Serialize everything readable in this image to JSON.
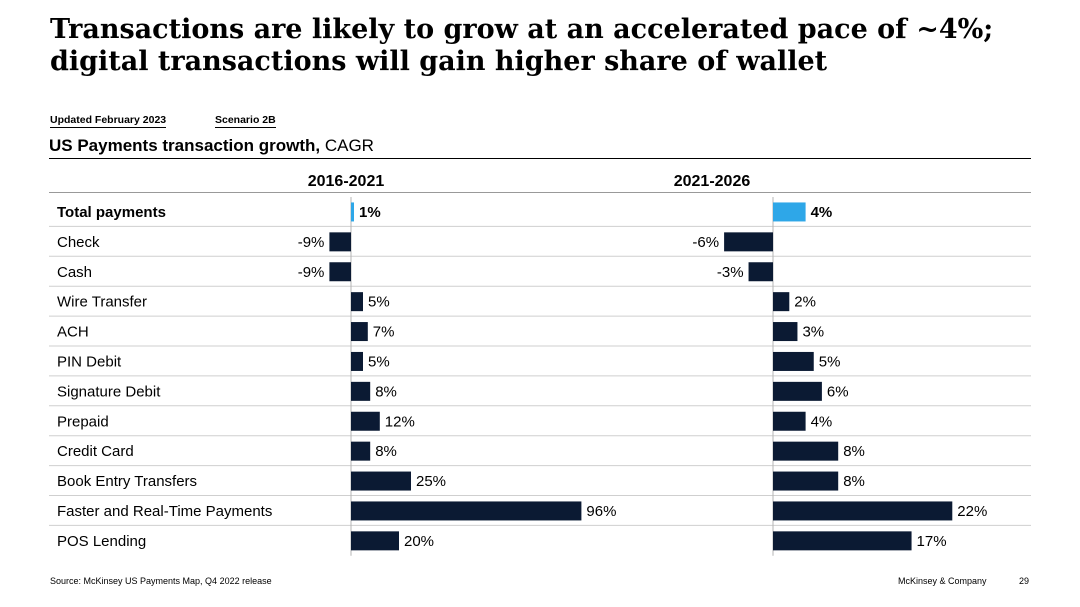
{
  "title": "Transactions are likely to grow at an accelerated pace of ~4%; digital transactions will gain higher share of wallet",
  "tags": {
    "updated": "Updated February 2023",
    "scenario": "Scenario 2B"
  },
  "subtitle": {
    "bold": "US Payments transaction growth,",
    "normal": " CAGR"
  },
  "footer": {
    "source": "Source: McKinsey US Payments Map, Q4 2022 release",
    "company": "McKinsey & Company",
    "page": "29"
  },
  "colors": {
    "highlight": "#2ea7e8",
    "bar": "#0b1a33",
    "grid": "#cfcfcf"
  },
  "chart_data": {
    "type": "bar",
    "orientation": "horizontal",
    "title": "US Payments transaction growth, CAGR",
    "categories": [
      "Total payments",
      "Check",
      "Cash",
      "Wire Transfer",
      "ACH",
      "PIN Debit",
      "Signature Debit",
      "Prepaid",
      "Credit Card",
      "Book Entry Transfers",
      "Faster and Real-Time Payments",
      "POS Lending"
    ],
    "highlight_category": "Total payments",
    "series": [
      {
        "name": "2016-2021",
        "values": [
          1,
          -9,
          -9,
          5,
          7,
          5,
          8,
          12,
          8,
          25,
          96,
          20
        ],
        "labels": [
          "1%",
          "-9%",
          "-9%",
          "5%",
          "7%",
          "5%",
          "8%",
          "12%",
          "8%",
          "25%",
          "96%",
          "20%"
        ]
      },
      {
        "name": "2021-2026",
        "values": [
          4,
          -6,
          -3,
          2,
          3,
          5,
          6,
          4,
          8,
          8,
          22,
          17
        ],
        "labels": [
          "4%",
          "-6%",
          "-3%",
          "2%",
          "3%",
          "5%",
          "6%",
          "4%",
          "8%",
          "8%",
          "22%",
          "17%"
        ]
      }
    ],
    "unit": "%"
  }
}
